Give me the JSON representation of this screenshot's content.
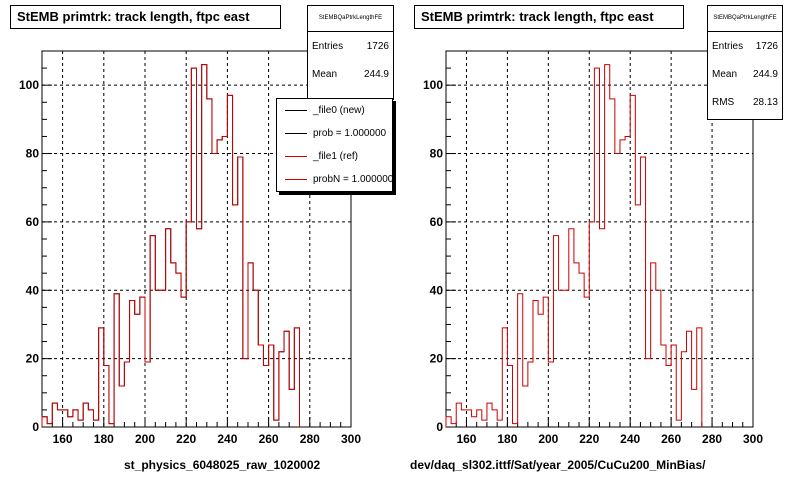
{
  "colors": {
    "new": "#000000",
    "ref": "#cc0000",
    "grid": "#000000"
  },
  "left_panel": {
    "title": "StEMB primtrk: track length, ftpc east",
    "stats": {
      "name": "StEMBQaPtrkLengthFE",
      "entries_label": "Entries",
      "entries_value": "1726",
      "mean_label": "Mean",
      "mean_value": "244.9"
    },
    "legend": [
      {
        "label": "_file0 (new)",
        "color": "#000000"
      },
      {
        "label": "prob = 1.000000",
        "color": "#000000"
      },
      {
        "label": "_file1 (ref)",
        "color": "#cc0000"
      },
      {
        "label": "probN = 1.000000",
        "color": "#cc0000"
      }
    ],
    "footer": "st_physics_6048025_raw_1020002"
  },
  "right_panel": {
    "title": "StEMB primtrk: track length, ftpc east",
    "stats": {
      "name": "StEMBQaPtrkLengthFE",
      "entries_label": "Entries",
      "entries_value": "1726",
      "mean_label": "Mean",
      "mean_value": "244.9",
      "rms_label": "RMS",
      "rms_value": "28.13"
    },
    "footer": "dev/daq_sl302.ittf/Sat/year_2005/CuCu200_MinBias/"
  },
  "chart_data": [
    {
      "type": "histogram",
      "title": "StEMB primtrk: track length, ftpc east",
      "xlabel": "st_physics_6048025_raw_1020002",
      "ylabel": "",
      "xlim": [
        150,
        300
      ],
      "ylim": [
        0,
        110
      ],
      "xticks": [
        160,
        180,
        200,
        220,
        240,
        260,
        280,
        300
      ],
      "yticks": [
        0,
        20,
        40,
        60,
        80,
        100
      ],
      "grid": true,
      "legend_position": "top-right",
      "bin_width": 2.5,
      "x_start": 150,
      "series": [
        {
          "name": "_file0 (new)",
          "values": [
            3,
            1,
            7,
            5,
            5,
            3,
            5,
            2,
            7,
            5,
            2,
            29,
            18,
            1,
            39,
            12,
            19,
            37,
            33,
            38,
            19,
            56,
            40,
            40,
            58,
            48,
            45,
            38,
            60,
            105,
            58,
            106,
            96,
            80,
            84,
            85,
            97,
            65,
            79,
            20,
            48,
            40,
            24,
            18,
            24,
            2,
            22,
            28,
            11,
            29
          ]
        },
        {
          "name": "_file1 (ref)",
          "values": [
            3,
            1,
            7,
            5,
            5,
            3,
            5,
            2,
            7,
            5,
            2,
            29,
            18,
            1,
            39,
            12,
            19,
            37,
            33,
            38,
            19,
            56,
            40,
            40,
            58,
            48,
            45,
            38,
            60,
            105,
            58,
            106,
            96,
            80,
            84,
            85,
            97,
            65,
            79,
            20,
            48,
            40,
            24,
            18,
            24,
            2,
            22,
            28,
            11,
            29
          ]
        }
      ]
    },
    {
      "type": "histogram",
      "title": "StEMB primtrk: track length, ftpc east",
      "xlabel": "dev/daq_sl302.ittf/Sat/year_2005/CuCu200_MinBias/",
      "ylabel": "",
      "xlim": [
        150,
        300
      ],
      "ylim": [
        0,
        110
      ],
      "xticks": [
        160,
        180,
        200,
        220,
        240,
        260,
        280,
        300
      ],
      "yticks": [
        0,
        20,
        40,
        60,
        80,
        100
      ],
      "grid": true,
      "bin_width": 2.5,
      "x_start": 150,
      "series": [
        {
          "name": "",
          "values": [
            3,
            1,
            7,
            5,
            5,
            3,
            5,
            2,
            7,
            5,
            2,
            29,
            18,
            1,
            39,
            12,
            19,
            37,
            33,
            38,
            19,
            56,
            40,
            40,
            58,
            48,
            45,
            38,
            60,
            105,
            58,
            106,
            96,
            80,
            84,
            85,
            97,
            65,
            79,
            20,
            48,
            40,
            24,
            18,
            24,
            2,
            22,
            28,
            11,
            29
          ]
        }
      ]
    }
  ]
}
